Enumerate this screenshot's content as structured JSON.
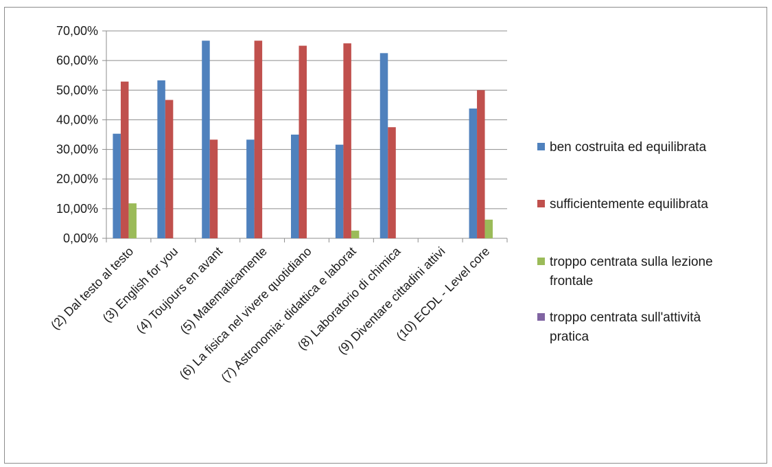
{
  "chart_data": {
    "type": "bar",
    "title": "",
    "xlabel": "",
    "ylabel": "",
    "ylim": [
      0,
      70
    ],
    "y_ticks": [
      0,
      10,
      20,
      30,
      40,
      50,
      60,
      70
    ],
    "y_tick_labels": [
      "0,00%",
      "10,00%",
      "20,00%",
      "30,00%",
      "40,00%",
      "50,00%",
      "60,00%",
      "70,00%"
    ],
    "grid": true,
    "legend_position": "right",
    "categories": [
      "(2) Dal testo al testo",
      "(3) English for you",
      "(4) Toujours en avant",
      "(5) Matematicamente",
      "(6) La fisica nel vivere quotidiano",
      "(7) Astronomia: didattica e laborat",
      "(8) Laboratorio di chimica",
      "(9) Diventare cittadini attivi",
      "(10) ECDL - Level core"
    ],
    "series": [
      {
        "name": "ben costruita ed equilibrata",
        "color": "#4f81bd",
        "values": [
          35.3,
          53.3,
          66.7,
          33.3,
          35.0,
          31.6,
          62.5,
          0,
          43.8
        ]
      },
      {
        "name": "sufficientemente equilibrata",
        "color": "#c0504d",
        "values": [
          52.9,
          46.7,
          33.3,
          66.7,
          65.0,
          65.8,
          37.5,
          0,
          50.0
        ]
      },
      {
        "name": "troppo centrata sulla lezione frontale",
        "color": "#9bbb59",
        "values": [
          11.8,
          0,
          0,
          0,
          0,
          2.6,
          0,
          0,
          6.3
        ]
      },
      {
        "name": "troppo centrata sull'attività pratica",
        "color": "#8064a2",
        "values": [
          0,
          0,
          0,
          0,
          0,
          0,
          0,
          0,
          0
        ]
      }
    ]
  }
}
